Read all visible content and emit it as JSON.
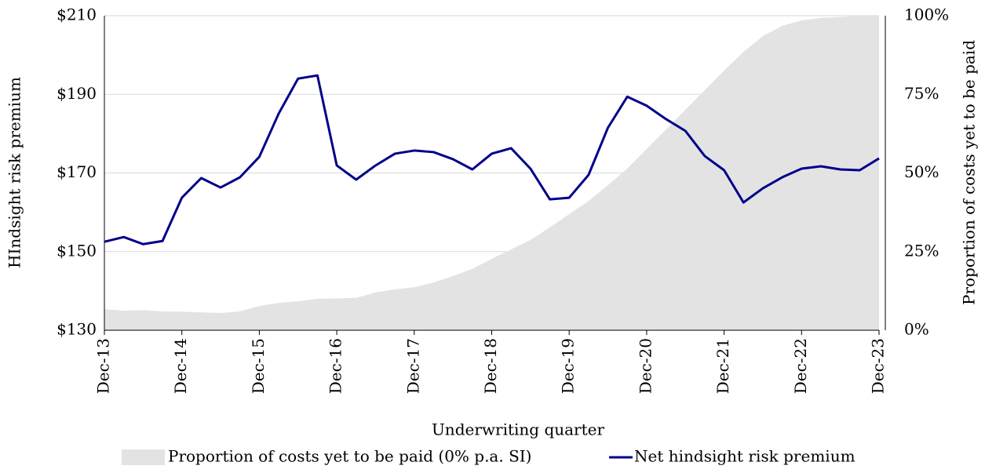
{
  "chart_data": {
    "type": "line",
    "x_label": "Underwriting quarter",
    "y_label": "HIndsight risk premium",
    "y2_label": "Proportion of costs yet to be paid",
    "categories": [
      "Dec-13",
      null,
      null,
      null,
      "Dec-14",
      null,
      null,
      null,
      "Dec-15",
      null,
      null,
      null,
      "Dec-16",
      null,
      null,
      null,
      "Dec-17",
      null,
      null,
      null,
      "Dec-18",
      null,
      null,
      null,
      "Dec-19",
      null,
      null,
      null,
      "Dec-20",
      null,
      null,
      null,
      "Dec-21",
      null,
      null,
      null,
      "Dec-22",
      null,
      null,
      null,
      "Dec-23"
    ],
    "series": [
      {
        "name": "Proportion of costs yet to be paid (0% p.a. SI)",
        "type": "area",
        "axis": "y2",
        "color": "#e3e3e3",
        "values": [
          6.7,
          6.2,
          6.4,
          6.0,
          5.9,
          5.7,
          5.5,
          6.0,
          7.7,
          8.7,
          9.2,
          10.0,
          10.1,
          10.3,
          12.0,
          13.0,
          13.7,
          15.2,
          17.2,
          19.5,
          22.7,
          25.7,
          28.7,
          32.7,
          36.9,
          41.1,
          46.1,
          51.4,
          57.6,
          63.8,
          70.1,
          76.3,
          82.5,
          88.5,
          93.5,
          96.8,
          98.5,
          99.3,
          99.6,
          99.9,
          100
        ]
      },
      {
        "name": "Net hindsight risk premium",
        "type": "line",
        "axis": "y",
        "color": "#00008b",
        "values": [
          152.5,
          153.7,
          151.9,
          152.7,
          163.7,
          168.7,
          166.3,
          168.9,
          174.1,
          185.1,
          194.0,
          194.8,
          171.9,
          168.3,
          171.9,
          174.9,
          175.7,
          175.3,
          173.5,
          170.9,
          174.9,
          176.3,
          171.1,
          163.3,
          163.7,
          169.5,
          181.5,
          189.4,
          187.1,
          183.7,
          180.7,
          174.3,
          170.7,
          162.5,
          166.1,
          168.9,
          171.1,
          171.7,
          170.9,
          170.7,
          173.7
        ]
      }
    ],
    "ylim": [
      130,
      210
    ],
    "yticks": [
      {
        "value": 130,
        "label": "$130"
      },
      {
        "value": 150,
        "label": "$150"
      },
      {
        "value": 170,
        "label": "$170"
      },
      {
        "value": 190,
        "label": "$190"
      },
      {
        "value": 210,
        "label": "$210"
      }
    ],
    "y2lim": [
      0,
      100
    ],
    "y2ticks": [
      {
        "value": 0,
        "label": "0%"
      },
      {
        "value": 25,
        "label": "25%"
      },
      {
        "value": 50,
        "label": "50%"
      },
      {
        "value": 75,
        "label": "75%"
      },
      {
        "value": 100,
        "label": "100%"
      }
    ],
    "grid": true,
    "legend": "bottom"
  }
}
